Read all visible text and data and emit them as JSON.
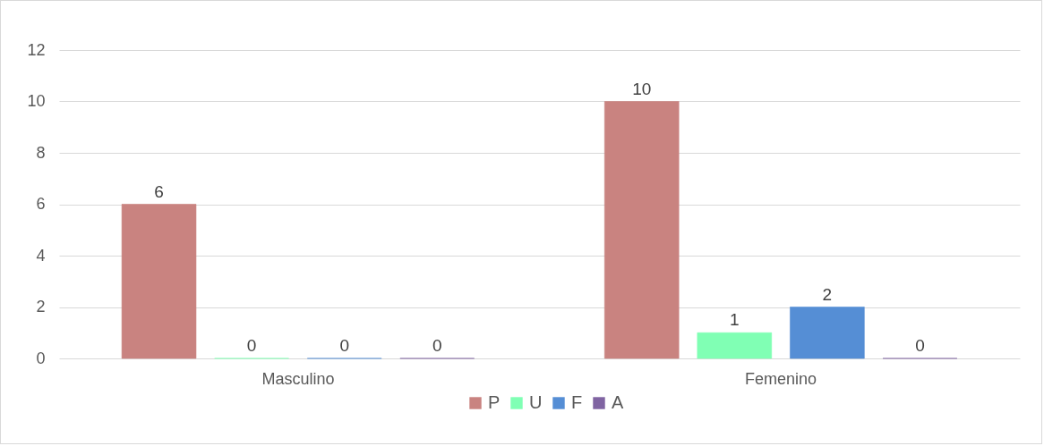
{
  "chart_data": {
    "type": "bar",
    "categories": [
      "Masculino",
      "Femenino"
    ],
    "series": [
      {
        "name": "P",
        "color": "#c98380",
        "values": [
          6,
          10
        ]
      },
      {
        "name": "U",
        "color": "#80ffb4",
        "values": [
          0,
          1
        ]
      },
      {
        "name": "F",
        "color": "#558ed5",
        "values": [
          0,
          2
        ]
      },
      {
        "name": "A",
        "color": "#8064a2",
        "values": [
          0,
          0
        ]
      }
    ],
    "ylim": [
      0,
      12
    ],
    "yticks": [
      0,
      2,
      4,
      6,
      8,
      10,
      12
    ],
    "grid": "y",
    "data_labels": true,
    "legend": "bottom"
  }
}
